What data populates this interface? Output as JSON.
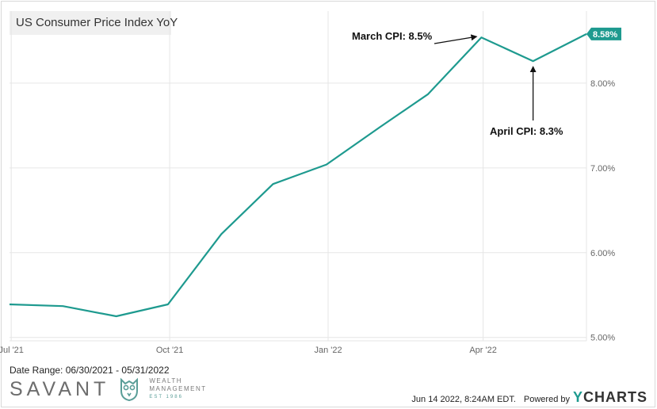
{
  "chart_data": {
    "type": "line",
    "title": "US Consumer Price Index YoY",
    "x": [
      "2021-06-30",
      "2021-07-31",
      "2021-08-31",
      "2021-09-30",
      "2021-10-31",
      "2021-11-30",
      "2021-12-31",
      "2022-01-31",
      "2022-02-28",
      "2022-03-31",
      "2022-04-30",
      "2022-05-31"
    ],
    "series": [
      {
        "values": [
          5.39,
          5.37,
          5.25,
          5.39,
          6.22,
          6.81,
          7.04,
          7.48,
          7.87,
          8.54,
          8.26,
          8.58
        ]
      }
    ],
    "x_ticks": [
      {
        "label": "Jul '21",
        "date": "2021-07-01"
      },
      {
        "label": "Oct '21",
        "date": "2021-10-01"
      },
      {
        "label": "Jan '22",
        "date": "2022-01-01"
      },
      {
        "label": "Apr '22",
        "date": "2022-04-01"
      }
    ],
    "y_ticks": [
      {
        "label": "5.00%",
        "value": 5
      },
      {
        "label": "6.00%",
        "value": 6
      },
      {
        "label": "7.00%",
        "value": 7
      },
      {
        "label": "8.00%",
        "value": 8
      }
    ],
    "ylim": [
      4.96,
      8.85
    ],
    "xlim": [
      "2021-06-30",
      "2022-05-31"
    ],
    "grid": true,
    "last_value_label": "8.58%",
    "line_color": "#1e9a8f",
    "annotations": [
      {
        "text": "March CPI: 8.5%",
        "date": "2022-03-31",
        "value": 8.54
      },
      {
        "text": "April CPI: 8.3%",
        "date": "2022-04-30",
        "value": 8.26
      }
    ]
  },
  "footer": {
    "date_range": "Date Range: 06/30/2021 - 05/31/2022",
    "timestamp": "Jun 14 2022, 8:24AM EDT.",
    "powered_by": "Powered by",
    "ycharts_y": "Y",
    "ycharts_rest": "CHARTS"
  },
  "brand": {
    "name": "SAVANT",
    "sub_line1": "WEALTH",
    "sub_line2": "MANAGEMENT",
    "est": "EST 1986",
    "icon": "owl-icon"
  }
}
